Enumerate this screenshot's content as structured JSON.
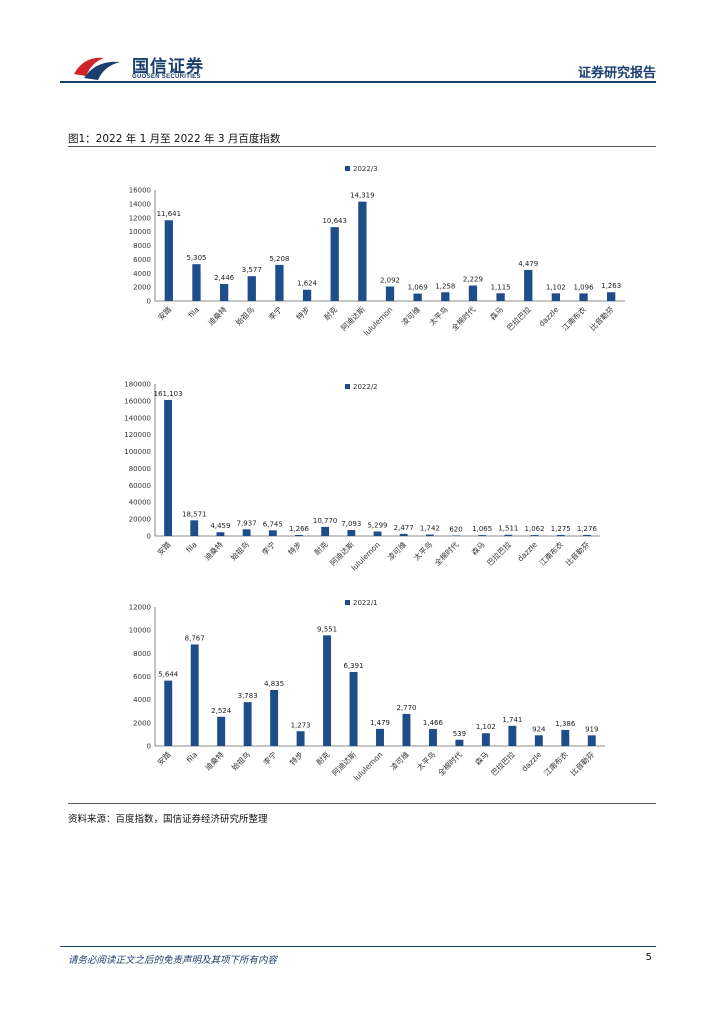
{
  "header": {
    "company_cn": "国信证券",
    "company_en": "GUOSEN SECURITIES",
    "report_label": "证券研究报告",
    "brand_color": "#1a3f6f",
    "accent_color": "#d2232a"
  },
  "figure_title": "图1：2022 年 1 月至 2022 年 3 月百度指数",
  "chart_data": [
    {
      "type": "bar",
      "legend": "2022/3",
      "categories": [
        "安踏",
        "fila",
        "迪桑特",
        "始祖鸟",
        "李宁",
        "特步",
        "耐克",
        "阿迪达斯",
        "lululemon",
        "凌可维",
        "太平鸟",
        "全棉时代",
        "森马",
        "巴拉巴拉",
        "dazzle",
        "江南布衣",
        "比音勒芬"
      ],
      "values": [
        11641,
        5305,
        2446,
        3577,
        5208,
        1624,
        10643,
        14319,
        2092,
        1069,
        1258,
        2229,
        1115,
        4479,
        1102,
        1096,
        1263
      ],
      "labels": [
        "11,641",
        "5,305",
        "2,446",
        "3,577",
        "5,208",
        "1,624",
        "10,643",
        "14,319",
        "2,092",
        "1,069",
        "1,258",
        "2,229",
        "1,115",
        "4,479",
        "1,102",
        "1,096",
        "1,263"
      ],
      "yticks": [
        "16000",
        "14000",
        "12000",
        "10000",
        "8000",
        "6000",
        "4000",
        "2000",
        "0"
      ],
      "ylim": [
        0,
        16000
      ],
      "color": "#1d4e89"
    },
    {
      "type": "bar",
      "legend": "2022/2",
      "categories": [
        "安踏",
        "fila",
        "迪桑特",
        "始祖鸟",
        "李宁",
        "特步",
        "耐克",
        "阿迪达斯",
        "lululemon",
        "凌可维",
        "太平鸟",
        "全棉时代",
        "森马",
        "巴拉巴拉",
        "dazzle",
        "江南布衣",
        "比音勒芬"
      ],
      "values": [
        161103,
        18571,
        4459,
        7937,
        6745,
        1266,
        10770,
        7093,
        5299,
        2477,
        1742,
        620,
        1065,
        1511,
        1062,
        1275,
        1276
      ],
      "labels": [
        "161,103",
        "18,571",
        "4,459",
        "7,937",
        "6,745",
        "1,266",
        "10,770",
        "7,093",
        "5,299",
        "2,477",
        "1,742",
        "620",
        "1,065",
        "1,511",
        "1,062",
        "1,275",
        "1,276"
      ],
      "yticks": [
        "180000",
        "160000",
        "140000",
        "120000",
        "100000",
        "80000",
        "60000",
        "40000",
        "20000",
        "0"
      ],
      "ylim": [
        0,
        180000
      ],
      "color": "#1d4e89"
    },
    {
      "type": "bar",
      "legend": "2022/1",
      "categories": [
        "安踏",
        "fila",
        "迪桑特",
        "始祖鸟",
        "李宁",
        "特步",
        "耐克",
        "阿迪达斯",
        "lululemon",
        "凌可维",
        "太平鸟",
        "全棉时代",
        "森马",
        "巴拉巴拉",
        "dazzle",
        "江南布衣",
        "比音勒芬"
      ],
      "values": [
        5644,
        8767,
        2524,
        3783,
        4835,
        1273,
        9551,
        6391,
        1479,
        2770,
        1466,
        539,
        1102,
        1741,
        924,
        1386,
        919
      ],
      "labels": [
        "5,644",
        "8,767",
        "2,524",
        "3,783",
        "4,835",
        "1,273",
        "9,551",
        "6,391",
        "1,479",
        "2,770",
        "1,466",
        "539",
        "1,102",
        "1,741",
        "924",
        "1,386",
        "919"
      ],
      "yticks": [
        "12000",
        "10000",
        "8000",
        "6000",
        "4000",
        "2000",
        "0"
      ],
      "ylim": [
        0,
        12000
      ],
      "color": "#1d4e89"
    }
  ],
  "source": "资料来源：百度指数，国信证券经济研究所整理",
  "footer": {
    "disclaimer": "请务必阅读正文之后的免责声明及其项下所有内容",
    "page": "5"
  }
}
